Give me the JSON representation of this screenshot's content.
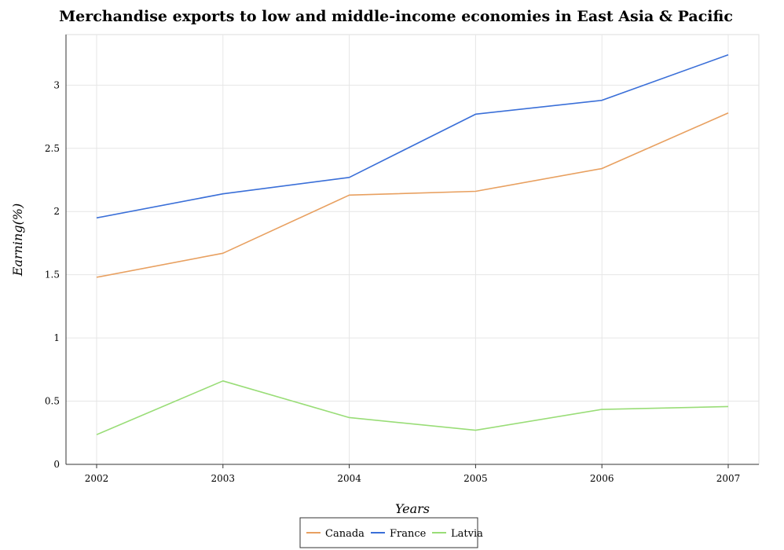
{
  "chart_data": {
    "type": "line",
    "title": "Merchandise exports to low and middle-income economies in East Asia & Pacific",
    "xlabel": "Years",
    "ylabel": "Earning(%)",
    "categories": [
      "2002",
      "2003",
      "2004",
      "2005",
      "2006",
      "2007"
    ],
    "ylim": [
      0,
      3.4
    ],
    "yticks": [
      0,
      0.5,
      1,
      1.5,
      2,
      2.5,
      3
    ],
    "ytick_labels": [
      "0",
      "0.5",
      "1",
      "1.5",
      "2",
      "2.5",
      "3"
    ],
    "grid": true,
    "legend_position": "bottom-center",
    "series": [
      {
        "name": "Canada",
        "color": "#e8a060",
        "values": [
          1.48,
          1.67,
          2.13,
          2.16,
          2.34,
          2.78
        ]
      },
      {
        "name": "France",
        "color": "#3a6fd8",
        "values": [
          1.95,
          2.14,
          2.27,
          2.77,
          2.88,
          3.24
        ]
      },
      {
        "name": "Latvia",
        "color": "#99dd77",
        "values": [
          0.235,
          0.66,
          0.37,
          0.27,
          0.435,
          0.457
        ]
      }
    ]
  }
}
